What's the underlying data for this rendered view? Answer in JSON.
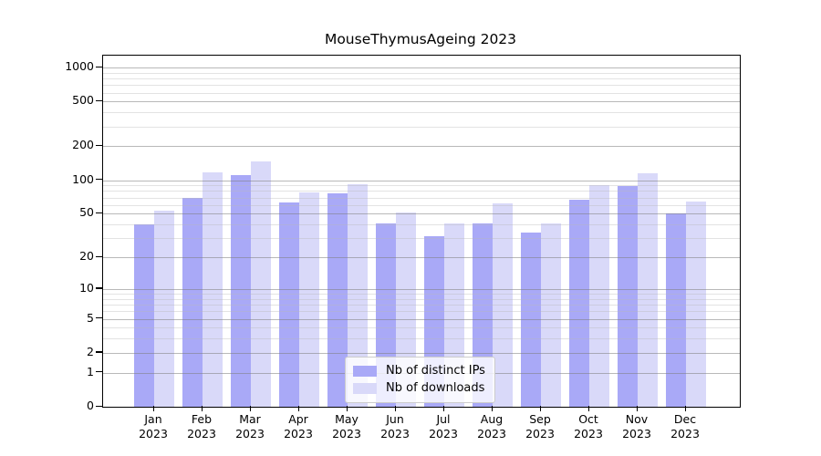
{
  "chart_data": {
    "type": "bar",
    "title": "MouseThymusAgeing 2023",
    "categories": [
      "Jan",
      "Feb",
      "Mar",
      "Apr",
      "May",
      "Jun",
      "Jul",
      "Aug",
      "Sep",
      "Oct",
      "Nov",
      "Dec"
    ],
    "category_year": "2023",
    "series": [
      {
        "name": "Nb of distinct IPs",
        "color": "#a9a9f7",
        "values": [
          40,
          70,
          110,
          63,
          76,
          41,
          31,
          41,
          34,
          67,
          88,
          50
        ]
      },
      {
        "name": "Nb of downloads",
        "color": "#d9d9f9",
        "values": [
          53,
          118,
          147,
          78,
          92,
          51,
          41,
          62,
          41,
          90,
          115,
          64
        ]
      }
    ],
    "y_scale": "log10(value+1)",
    "y_ticks": [
      0,
      1,
      2,
      5,
      10,
      20,
      50,
      100,
      200,
      500,
      1000
    ],
    "y_minor_ticks": [
      3,
      4,
      6,
      7,
      8,
      9,
      30,
      40,
      60,
      70,
      80,
      90,
      300,
      400,
      600,
      700,
      800,
      900
    ],
    "ylim": [
      0,
      1270
    ],
    "xlabel": "",
    "ylabel": "",
    "grid": "on",
    "legend_position": "bottom-center"
  },
  "colors": {
    "background": "#ffffff",
    "axis": "#000000",
    "text": "#000000",
    "major_grid": "rgba(128,128,128,0.55)",
    "minor_grid": "rgba(185,185,185,0.4)",
    "legend_border": "#cccccc"
  }
}
